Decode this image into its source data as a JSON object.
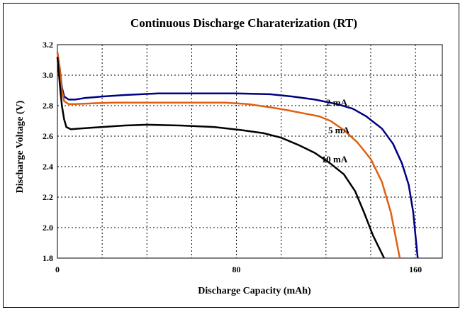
{
  "chart_data": {
    "type": "line",
    "title": "Continuous Discharge Charaterization (RT)",
    "xlabel": "Discharge Capacity (mAh)",
    "ylabel": "Discharge Voltage (V)",
    "xlim": [
      0,
      172
    ],
    "ylim": [
      1.8,
      3.2
    ],
    "x_ticks": [
      0,
      80,
      160
    ],
    "y_ticks": [
      1.8,
      2.0,
      2.2,
      2.4,
      2.6,
      2.8,
      3.0,
      3.2
    ],
    "grid": true,
    "series": [
      {
        "name": "2 mA",
        "color": "#000080",
        "points": [
          [
            0,
            3.15
          ],
          [
            1,
            3.05
          ],
          [
            2,
            2.92
          ],
          [
            3,
            2.86
          ],
          [
            5,
            2.84
          ],
          [
            8,
            2.84
          ],
          [
            12,
            2.85
          ],
          [
            20,
            2.86
          ],
          [
            30,
            2.87
          ],
          [
            45,
            2.88
          ],
          [
            60,
            2.88
          ],
          [
            80,
            2.88
          ],
          [
            95,
            2.875
          ],
          [
            105,
            2.86
          ],
          [
            115,
            2.84
          ],
          [
            125,
            2.81
          ],
          [
            132,
            2.78
          ],
          [
            138,
            2.73
          ],
          [
            145,
            2.65
          ],
          [
            150,
            2.55
          ],
          [
            154,
            2.42
          ],
          [
            157,
            2.28
          ],
          [
            159,
            2.1
          ],
          [
            160,
            1.95
          ],
          [
            161,
            1.8
          ]
        ]
      },
      {
        "name": "5 mA",
        "color": "#e06010",
        "points": [
          [
            0,
            3.15
          ],
          [
            1,
            3.05
          ],
          [
            2,
            2.9
          ],
          [
            3,
            2.83
          ],
          [
            5,
            2.81
          ],
          [
            8,
            2.81
          ],
          [
            15,
            2.815
          ],
          [
            25,
            2.82
          ],
          [
            40,
            2.82
          ],
          [
            60,
            2.82
          ],
          [
            75,
            2.82
          ],
          [
            85,
            2.81
          ],
          [
            95,
            2.79
          ],
          [
            103,
            2.77
          ],
          [
            110,
            2.75
          ],
          [
            117,
            2.73
          ],
          [
            122,
            2.7
          ],
          [
            128,
            2.64
          ],
          [
            134,
            2.56
          ],
          [
            140,
            2.45
          ],
          [
            145,
            2.3
          ],
          [
            149,
            2.1
          ],
          [
            151,
            1.95
          ],
          [
            153,
            1.8
          ]
        ]
      },
      {
        "name": "10 mA",
        "color": "#000000",
        "points": [
          [
            0,
            3.12
          ],
          [
            1,
            2.95
          ],
          [
            2,
            2.8
          ],
          [
            3,
            2.71
          ],
          [
            4,
            2.66
          ],
          [
            6,
            2.645
          ],
          [
            10,
            2.65
          ],
          [
            20,
            2.66
          ],
          [
            30,
            2.67
          ],
          [
            40,
            2.675
          ],
          [
            55,
            2.67
          ],
          [
            70,
            2.66
          ],
          [
            82,
            2.64
          ],
          [
            92,
            2.62
          ],
          [
            100,
            2.59
          ],
          [
            108,
            2.54
          ],
          [
            115,
            2.49
          ],
          [
            122,
            2.42
          ],
          [
            128,
            2.35
          ],
          [
            133,
            2.24
          ],
          [
            137,
            2.1
          ],
          [
            141,
            1.95
          ],
          [
            146,
            1.8
          ]
        ]
      }
    ],
    "annotations": [
      "2 mA",
      "5 mA",
      "10 mA"
    ]
  }
}
